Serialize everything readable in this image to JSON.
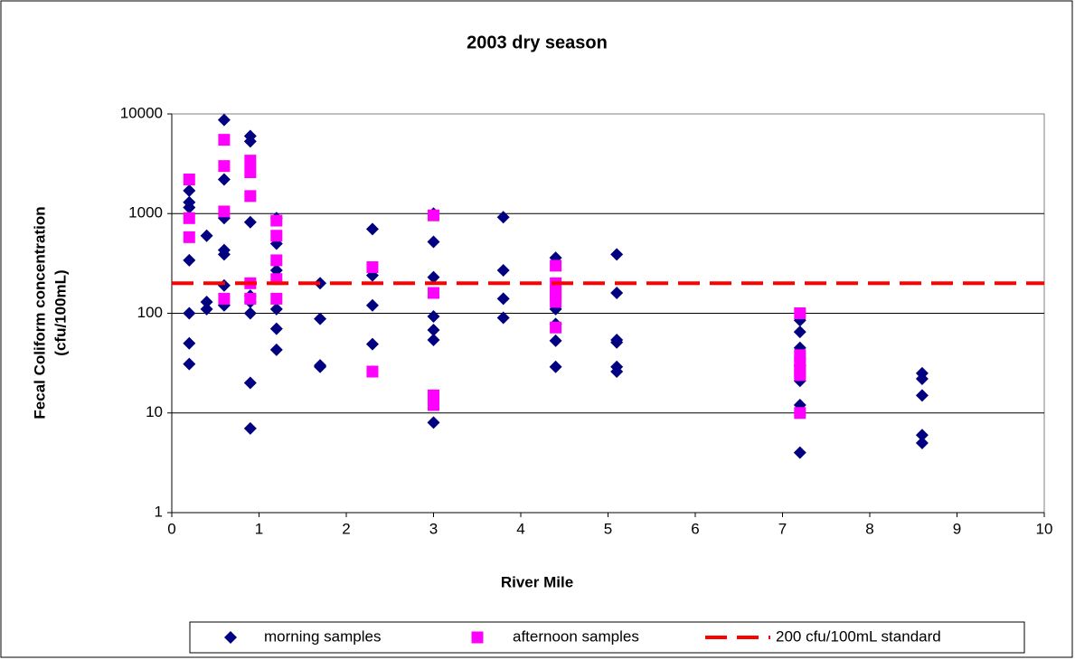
{
  "chart_data": {
    "type": "scatter",
    "title": "2003 dry season",
    "x_label": "River Mile",
    "y_label": [
      "Fecal Coliform concentration",
      "(cfu/100mL)"
    ],
    "xlim": [
      0,
      10
    ],
    "xticks": [
      0,
      1,
      2,
      3,
      4,
      5,
      6,
      7,
      8,
      9,
      10
    ],
    "ylim": [
      1,
      10000
    ],
    "yticks": [
      1,
      10,
      100,
      1000,
      10000
    ],
    "log_y": true,
    "grid": true,
    "legend": "bottom",
    "series": [
      {
        "name": "morning samples",
        "color": "#000080",
        "marker": "diamond",
        "x": [
          0.2,
          0.2,
          0.2,
          0.2,
          0.2,
          0.2,
          0.2,
          0.4,
          0.4,
          0.4,
          0.6,
          0.6,
          0.6,
          0.6,
          0.6,
          0.6,
          0.6,
          0.9,
          0.9,
          0.9,
          0.9,
          0.9,
          0.9,
          0.9,
          0.9,
          1.2,
          1.2,
          1.2,
          1.2,
          1.2,
          1.2,
          1.7,
          1.7,
          1.7,
          1.7,
          2.3,
          2.3,
          2.3,
          2.3,
          3.0,
          3.0,
          3.0,
          3.0,
          3.0,
          3.0,
          3.0,
          3.8,
          3.8,
          3.8,
          3.8,
          4.4,
          4.4,
          4.4,
          4.4,
          4.4,
          5.1,
          5.1,
          5.1,
          5.1,
          5.1,
          5.1,
          7.2,
          7.2,
          7.2,
          7.2,
          7.2,
          7.2,
          7.2,
          8.6,
          8.6,
          8.6,
          8.6,
          8.6
        ],
        "values": [
          1700,
          1300,
          1150,
          340,
          100,
          50,
          31,
          600,
          130,
          110,
          8700,
          2200,
          900,
          430,
          390,
          190,
          120,
          6000,
          5300,
          820,
          150,
          130,
          100,
          20,
          7,
          900,
          500,
          270,
          110,
          70,
          43,
          200,
          88,
          30,
          29,
          700,
          240,
          120,
          49,
          1000,
          520,
          230,
          93,
          68,
          54,
          8,
          920,
          270,
          140,
          90,
          360,
          110,
          78,
          53,
          29,
          390,
          160,
          54,
          51,
          29,
          26,
          85,
          65,
          45,
          30,
          21,
          12,
          4,
          25,
          22,
          15,
          6,
          5
        ]
      },
      {
        "name": "afternoon samples",
        "color": "#ff00ff",
        "marker": "square",
        "x": [
          0.2,
          0.2,
          0.2,
          0.6,
          0.6,
          0.6,
          0.6,
          0.9,
          0.9,
          0.9,
          0.9,
          0.9,
          1.2,
          1.2,
          1.2,
          1.2,
          1.2,
          2.3,
          2.3,
          3.0,
          3.0,
          3.0,
          3.0,
          3.0,
          4.4,
          4.4,
          4.4,
          4.4,
          4.4,
          4.4,
          7.2,
          7.2,
          7.2,
          7.2,
          7.2,
          7.2
        ],
        "values": [
          2200,
          900,
          580,
          5500,
          3000,
          1050,
          140,
          3400,
          2600,
          1500,
          200,
          140,
          850,
          600,
          340,
          220,
          140,
          290,
          26,
          960,
          160,
          15,
          13,
          12,
          300,
          200,
          170,
          150,
          130,
          72,
          100,
          38,
          32,
          26,
          24,
          10
        ]
      }
    ],
    "reference_line": {
      "name": "200 cfu/100mL standard",
      "value": 200,
      "color": "#ff0000"
    }
  }
}
